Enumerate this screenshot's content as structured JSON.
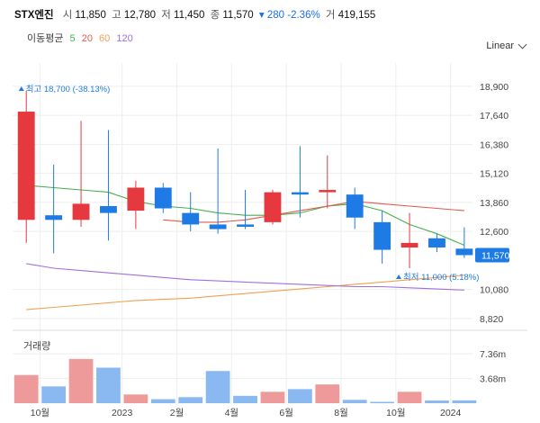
{
  "header": {
    "name": "STX엔진",
    "open_label": "시",
    "open": "11,850",
    "high_label": "고",
    "high": "12,780",
    "low_label": "저",
    "low": "11,450",
    "close_label": "종",
    "close": "11,570",
    "change": "▾ 280 -2.36%",
    "volume_label": "거",
    "volume": "419,155"
  },
  "ma_legend": {
    "title": "이동평균",
    "periods": [
      {
        "label": "5",
        "color": "#46b04c"
      },
      {
        "label": "20",
        "color": "#e05a4f"
      },
      {
        "label": "60",
        "color": "#f0a050"
      },
      {
        "label": "120",
        "color": "#a070e0"
      }
    ]
  },
  "scale_toggle": {
    "label": "Linear"
  },
  "colors": {
    "up": "#e5393f",
    "down": "#1e7be6",
    "up_vol": "#ef9a9a",
    "down_vol": "#8ab8f0",
    "grid": "#eeeeee",
    "badge": "#1e7be6"
  },
  "chart_data": {
    "type": "candlestick",
    "x_tick_labels": [
      "10월",
      "2023",
      "2월",
      "4월",
      "6월",
      "8월",
      "10월",
      "2024"
    ],
    "x_tick_after_index": [
      0,
      3,
      5,
      7,
      9,
      11,
      13,
      15
    ],
    "y_ticks": [
      18900,
      17640,
      16380,
      15120,
      13860,
      12600,
      10080,
      8820
    ],
    "y_tick_labels": [
      "18,900",
      "17,640",
      "16,380",
      "15,120",
      "13,860",
      "12,600",
      "10,080",
      "8,820"
    ],
    "ylim": [
      8500,
      19600
    ],
    "candles": [
      {
        "open": 13100,
        "high": 18700,
        "low": 12100,
        "close": 17800
      },
      {
        "open": 13300,
        "high": 15500,
        "low": 11650,
        "close": 13100
      },
      {
        "open": 13100,
        "high": 17400,
        "low": 12800,
        "close": 13800
      },
      {
        "open": 13700,
        "high": 17000,
        "low": 12200,
        "close": 13400
      },
      {
        "open": 13500,
        "high": 14800,
        "low": 12700,
        "close": 14500
      },
      {
        "open": 14500,
        "high": 14700,
        "low": 13400,
        "close": 13600
      },
      {
        "open": 13400,
        "high": 14300,
        "low": 12600,
        "close": 12900
      },
      {
        "open": 12900,
        "high": 16200,
        "low": 12500,
        "close": 12700
      },
      {
        "open": 12900,
        "high": 14400,
        "low": 12700,
        "close": 12800
      },
      {
        "open": 13000,
        "high": 14400,
        "low": 12900,
        "close": 14300
      },
      {
        "open": 14300,
        "high": 16300,
        "low": 13200,
        "close": 14200
      },
      {
        "open": 14300,
        "high": 15900,
        "low": 13600,
        "close": 14400
      },
      {
        "open": 14200,
        "high": 14500,
        "low": 12700,
        "close": 13200
      },
      {
        "open": 13000,
        "high": 13500,
        "low": 11200,
        "close": 11800
      },
      {
        "open": 11900,
        "high": 13400,
        "low": 11000,
        "close": 12100
      },
      {
        "open": 12300,
        "high": 12500,
        "low": 11700,
        "close": 11900
      },
      {
        "open": 11850,
        "high": 12780,
        "low": 11450,
        "close": 11570
      }
    ],
    "ma_series": [
      {
        "period": "5",
        "color": "#46b04c",
        "values": [
          14600,
          14500,
          14400,
          14300,
          13900,
          13700,
          13600,
          13400,
          13300,
          13300,
          13400,
          13700,
          13800,
          13500,
          12900,
          12500,
          12000
        ]
      },
      {
        "period": "20",
        "color": "#e05a4f",
        "values": [
          null,
          null,
          null,
          null,
          null,
          13100,
          13000,
          13000,
          13100,
          13300,
          13500,
          13700,
          13900,
          13800,
          13700,
          13600,
          13500
        ]
      },
      {
        "period": "60",
        "color": "#f0a050",
        "values": [
          9200,
          9300,
          9400,
          9500,
          9600,
          9650,
          9700,
          9800,
          9900,
          10000,
          10100,
          10200,
          10300,
          10400,
          10500,
          10600,
          10700
        ]
      },
      {
        "period": "120",
        "color": "#a070e0",
        "values": [
          11200,
          11000,
          10900,
          10800,
          10700,
          10600,
          10500,
          10450,
          10400,
          10350,
          10300,
          10250,
          10200,
          10200,
          10150,
          10100,
          10050
        ]
      }
    ],
    "high_marker": {
      "label": "최고 18,700 (-38.13%)",
      "value": 18700,
      "index": 0
    },
    "low_marker": {
      "label": "최저 11,000 (5.18%)",
      "value": 11000,
      "index": 14
    },
    "last_price": {
      "label": "11,570",
      "value": 11570
    },
    "volume": {
      "title": "거래량",
      "y_ticks": [
        7360000,
        3680000
      ],
      "y_tick_labels": [
        "7.36m",
        "3.68m"
      ],
      "ylim": [
        0,
        10200000
      ],
      "values": [
        4200000,
        2500000,
        6600000,
        5300000,
        1300000,
        600000,
        900000,
        4800000,
        1100000,
        1700000,
        2100000,
        2800000,
        500000,
        200000,
        1700000,
        400000,
        420000
      ]
    }
  }
}
